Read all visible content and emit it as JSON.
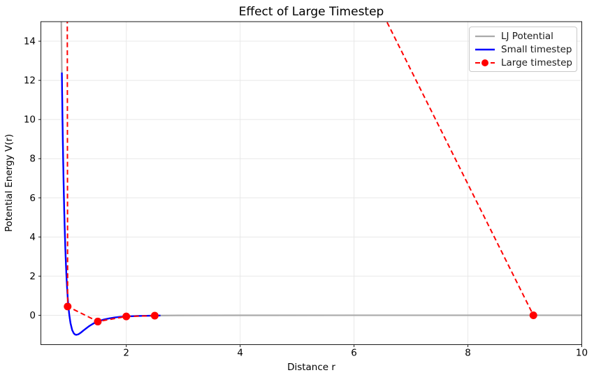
{
  "chart": {
    "title": "Effect of Large Timestep",
    "xlabel": "Distance r",
    "ylabel": "Potential Energy V(r)"
  },
  "legend": {
    "position": "upper right",
    "entries": [
      {
        "label": "LJ Potential",
        "color": "#aaaaaa",
        "line_style": "solid",
        "marker": "none"
      },
      {
        "label": "Small timestep",
        "color": "#0000ff",
        "line_style": "solid",
        "marker": "none"
      },
      {
        "label": "Large timestep",
        "color": "#ff0000",
        "line_style": "dashed",
        "marker": "circle"
      }
    ]
  },
  "chart_data": {
    "type": "line",
    "title": "Effect of Large Timestep",
    "xlabel": "Distance r",
    "ylabel": "Potential Energy V(r)",
    "xlim": [
      0.5,
      10
    ],
    "ylim": [
      -1.5,
      15
    ],
    "xticks": [
      2,
      4,
      6,
      8,
      10
    ],
    "yticks": [
      0,
      2,
      4,
      6,
      8,
      10,
      12,
      14
    ],
    "grid": true,
    "grid_color": "#e8e8e8",
    "background": "#ffffff",
    "series": [
      {
        "name": "LJ Potential",
        "color": "#aaaaaa",
        "style": "solid",
        "line_width": 2.2,
        "marker": "none",
        "formula": "V(r) = 4*((1/r)^12 - (1/r)^6)",
        "points": [
          [
            0.85,
            17.62
          ],
          [
            0.86,
            14.55
          ],
          [
            0.87,
            12.05
          ],
          [
            0.88,
            9.93
          ],
          [
            0.89,
            8.15
          ],
          [
            0.9,
            6.64
          ],
          [
            0.91,
            5.36
          ],
          [
            0.92,
            4.28
          ],
          [
            0.93,
            3.37
          ],
          [
            0.94,
            2.61
          ],
          [
            0.95,
            1.96
          ],
          [
            0.96,
            1.42
          ],
          [
            0.97,
            0.96
          ],
          [
            0.98,
            0.58
          ],
          [
            0.99,
            0.26
          ],
          [
            1.0,
            0.0
          ],
          [
            1.02,
            -0.4
          ],
          [
            1.05,
            -0.76
          ],
          [
            1.08,
            -0.93
          ],
          [
            1.1,
            -0.98
          ],
          [
            1.122,
            -1.0
          ],
          [
            1.16,
            -0.97
          ],
          [
            1.2,
            -0.89
          ],
          [
            1.25,
            -0.77
          ],
          [
            1.3,
            -0.66
          ],
          [
            1.35,
            -0.55
          ],
          [
            1.4,
            -0.46
          ],
          [
            1.45,
            -0.38
          ],
          [
            1.5,
            -0.32
          ],
          [
            1.6,
            -0.22
          ],
          [
            1.7,
            -0.16
          ],
          [
            1.8,
            -0.11
          ],
          [
            1.9,
            -0.08
          ],
          [
            2.0,
            -0.06
          ],
          [
            2.2,
            -0.035
          ],
          [
            2.5,
            -0.016
          ],
          [
            3.0,
            -0.005
          ],
          [
            4.0,
            -0.001
          ],
          [
            6.0,
            0.0
          ],
          [
            8.0,
            0.0
          ],
          [
            10.0,
            0.0
          ]
        ]
      },
      {
        "name": "Small timestep",
        "color": "#0000ff",
        "style": "solid",
        "line_width": 2.4,
        "marker": "none",
        "points": [
          [
            0.8685,
            12.4
          ],
          [
            0.88,
            9.93
          ],
          [
            0.89,
            8.15
          ],
          [
            0.9,
            6.64
          ],
          [
            0.91,
            5.36
          ],
          [
            0.92,
            4.28
          ],
          [
            0.93,
            3.37
          ],
          [
            0.94,
            2.61
          ],
          [
            0.95,
            1.96
          ],
          [
            0.96,
            1.42
          ],
          [
            0.97,
            0.96
          ],
          [
            0.98,
            0.58
          ],
          [
            0.99,
            0.26
          ],
          [
            1.0,
            0.0
          ],
          [
            1.02,
            -0.4
          ],
          [
            1.05,
            -0.76
          ],
          [
            1.08,
            -0.93
          ],
          [
            1.1,
            -0.98
          ],
          [
            1.122,
            -1.0
          ],
          [
            1.16,
            -0.97
          ],
          [
            1.2,
            -0.89
          ],
          [
            1.25,
            -0.77
          ],
          [
            1.3,
            -0.66
          ],
          [
            1.35,
            -0.55
          ],
          [
            1.4,
            -0.46
          ],
          [
            1.45,
            -0.38
          ],
          [
            1.5,
            -0.32
          ],
          [
            1.6,
            -0.22
          ],
          [
            1.7,
            -0.16
          ],
          [
            1.8,
            -0.11
          ],
          [
            1.9,
            -0.08
          ],
          [
            2.0,
            -0.06
          ],
          [
            2.2,
            -0.035
          ],
          [
            2.5,
            -0.016
          ],
          [
            2.6,
            -0.013
          ]
        ]
      },
      {
        "name": "Large timestep",
        "color": "#ff0000",
        "style": "dashed",
        "line_width": 2,
        "marker": "circle",
        "marker_size": 11,
        "visible_markers": [
          [
            0.97,
            0.45
          ],
          [
            1.5,
            -0.32
          ],
          [
            2.0,
            -0.06
          ],
          [
            2.5,
            -0.02
          ],
          [
            9.15,
            0.0
          ]
        ],
        "path": [
          [
            2.5,
            -0.02
          ],
          [
            2.0,
            -0.06
          ],
          [
            1.5,
            -0.32
          ],
          [
            0.97,
            0.45
          ],
          [
            0.95,
            48.0
          ],
          [
            4.0,
            30.0
          ],
          [
            9.15,
            0.0
          ]
        ],
        "note": "trajectory spikes far above ylim between r=2.5 and r=9.15; apex off-chart, descending edge enters plot top near r=6.58"
      }
    ]
  }
}
